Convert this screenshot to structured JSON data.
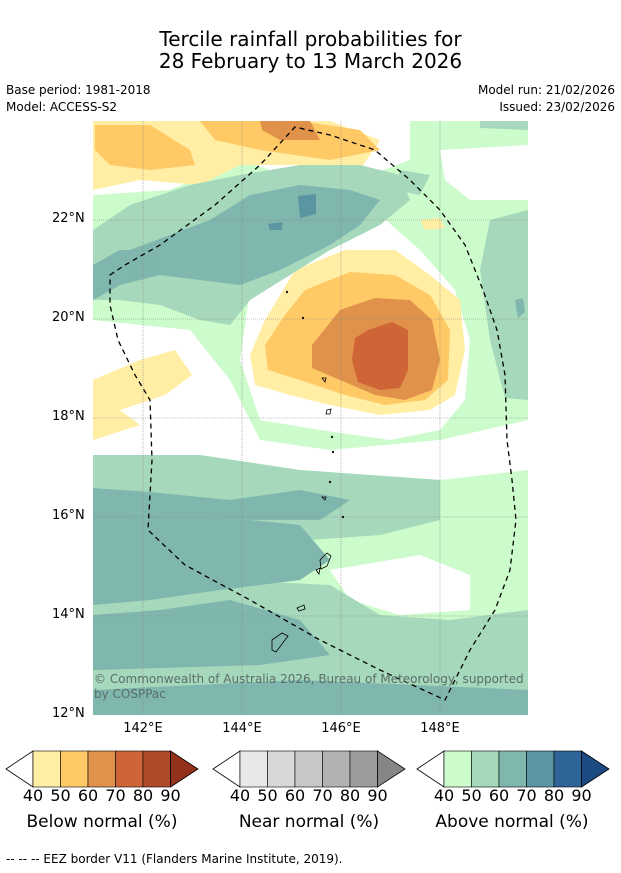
{
  "title_line1": "Tercile rainfall probabilities for",
  "title_line2": "28 February to 13 March 2026",
  "base_period": "Base period: 1981-2018",
  "model": "Model: ACCESS-S2",
  "model_run": "Model run: 21/02/2026",
  "issued": "Issued: 23/02/2026",
  "lat_labels": [
    "22°N",
    "20°N",
    "18°N",
    "16°N",
    "14°N",
    "12°N"
  ],
  "lon_labels": [
    "142°E",
    "144°E",
    "146°E",
    "148°E"
  ],
  "copyright_line1": "© Commonwealth of Australia 2026, Bureau of Meteorology, supported",
  "copyright_line2": "by COSPPac",
  "legends": [
    {
      "title": "Below normal (%)",
      "ticks": [
        "40",
        "50",
        "60",
        "70",
        "80",
        "90"
      ],
      "colors": [
        "#ffeea3",
        "#ffc966",
        "#e0924a",
        "#cf6536",
        "#b04a28",
        "#93321c"
      ]
    },
    {
      "title": "Near normal (%)",
      "ticks": [
        "40",
        "50",
        "60",
        "70",
        "80",
        "90"
      ],
      "colors": [
        "#e8e8e8",
        "#d8d8d8",
        "#c7c7c7",
        "#b2b2b2",
        "#9c9c9c",
        "#868686"
      ]
    },
    {
      "title": "Above normal (%)",
      "ticks": [
        "40",
        "50",
        "60",
        "70",
        "80",
        "90"
      ],
      "colors": [
        "#ccfccb",
        "#a6d8bb",
        "#7fb6ad",
        "#5b95a2",
        "#2f6499",
        "#1c4a82"
      ]
    }
  ],
  "footnote": "--  --  -- EEZ border V11 (Flanders Marine Institute, 2019)."
}
